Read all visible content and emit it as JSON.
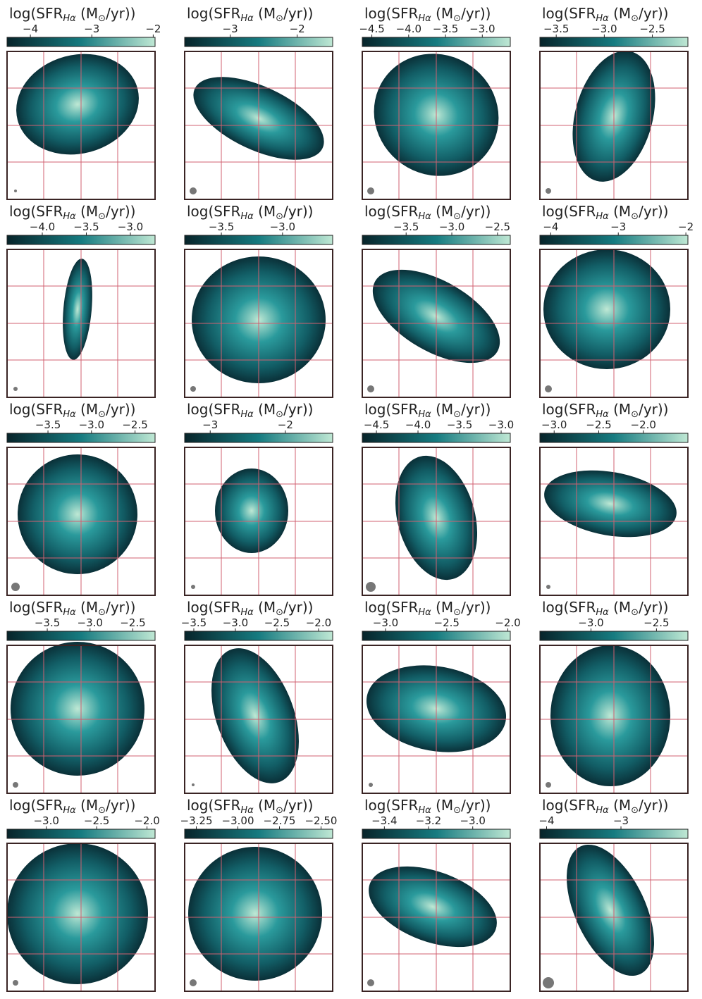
{
  "colorbar_label": [
    "log(SFR",
    "Hα",
    " (M",
    "⊙",
    "/yr))"
  ],
  "panels": [
    {
      "clim": [
        -4.38,
        -1.97
      ],
      "ticks": [
        {
          "value": -4,
          "label": "−4"
        },
        {
          "value": -3,
          "label": "−3"
        },
        {
          "value": -2,
          "label": "−2"
        }
      ]
    },
    {
      "clim": [
        -3.68,
        -1.47
      ],
      "ticks": [
        {
          "value": -3,
          "label": "−3"
        },
        {
          "value": -2,
          "label": "−2"
        }
      ]
    },
    {
      "clim": [
        -4.63,
        -2.62
      ],
      "ticks": [
        {
          "value": -4.5,
          "label": "−4.5"
        },
        {
          "value": -4.0,
          "label": "−4.0"
        },
        {
          "value": -3.5,
          "label": "−3.5"
        },
        {
          "value": -3.0,
          "label": "−3.0"
        }
      ]
    },
    {
      "clim": [
        -3.67,
        -2.13
      ],
      "ticks": [
        {
          "value": -3.5,
          "label": "−3.5"
        },
        {
          "value": -3.0,
          "label": "−3.0"
        },
        {
          "value": -2.5,
          "label": "−2.5"
        }
      ]
    },
    {
      "clim": [
        -4.4,
        -2.72
      ],
      "ticks": [
        {
          "value": -4.0,
          "label": "−4.0"
        },
        {
          "value": -3.5,
          "label": "−3.5"
        },
        {
          "value": -3.0,
          "label": "−3.0"
        }
      ]
    },
    {
      "clim": [
        -3.8,
        -2.59
      ],
      "ticks": [
        {
          "value": -3.5,
          "label": "−3.5"
        },
        {
          "value": -3.0,
          "label": "−3.0"
        }
      ]
    },
    {
      "clim": [
        -3.98,
        -2.36
      ],
      "ticks": [
        {
          "value": -3.5,
          "label": "−3.5"
        },
        {
          "value": -3.0,
          "label": "−3.0"
        },
        {
          "value": -2.5,
          "label": "−2.5"
        }
      ]
    },
    {
      "clim": [
        -4.16,
        -1.97
      ],
      "ticks": [
        {
          "value": -4,
          "label": "−4"
        },
        {
          "value": -3,
          "label": "−3"
        },
        {
          "value": -2,
          "label": "−2"
        }
      ]
    },
    {
      "clim": [
        -3.97,
        -2.27
      ],
      "ticks": [
        {
          "value": -3.5,
          "label": "−3.5"
        },
        {
          "value": -3.0,
          "label": "−3.0"
        },
        {
          "value": -2.5,
          "label": "−2.5"
        }
      ]
    },
    {
      "clim": [
        -3.34,
        -1.37
      ],
      "ticks": [
        {
          "value": -3,
          "label": "−3"
        },
        {
          "value": -2,
          "label": "−2"
        }
      ]
    },
    {
      "clim": [
        -4.67,
        -2.89
      ],
      "ticks": [
        {
          "value": -4.5,
          "label": "−4.5"
        },
        {
          "value": -4.0,
          "label": "−4.0"
        },
        {
          "value": -3.5,
          "label": "−3.5"
        },
        {
          "value": -3.0,
          "label": "−3.0"
        }
      ]
    },
    {
      "clim": [
        -3.16,
        -1.5
      ],
      "ticks": [
        {
          "value": -3.0,
          "label": "−3.0"
        },
        {
          "value": -2.5,
          "label": "−2.5"
        },
        {
          "value": -2.0,
          "label": "−2.0"
        }
      ]
    },
    {
      "clim": [
        -3.97,
        -2.24
      ],
      "ticks": [
        {
          "value": -3.5,
          "label": "−3.5"
        },
        {
          "value": -3.0,
          "label": "−3.0"
        },
        {
          "value": -2.5,
          "label": "−2.5"
        }
      ]
    },
    {
      "clim": [
        -3.61,
        -1.83
      ],
      "ticks": [
        {
          "value": -3.5,
          "label": "−3.5"
        },
        {
          "value": -3.0,
          "label": "−3.0"
        },
        {
          "value": -2.5,
          "label": "−2.5"
        },
        {
          "value": -2.0,
          "label": "−2.0"
        }
      ]
    },
    {
      "clim": [
        -3.19,
        -1.98
      ],
      "ticks": [
        {
          "value": -3.0,
          "label": "−3.0"
        },
        {
          "value": -2.5,
          "label": "−2.5"
        },
        {
          "value": -2.0,
          "label": "−2.0"
        }
      ]
    },
    {
      "clim": [
        -3.39,
        -2.26
      ],
      "ticks": [
        {
          "value": -3.0,
          "label": "−3.0"
        },
        {
          "value": -2.5,
          "label": "−2.5"
        }
      ]
    },
    {
      "clim": [
        -3.39,
        -1.92
      ],
      "ticks": [
        {
          "value": -3.0,
          "label": "−3.0"
        },
        {
          "value": -2.5,
          "label": "−2.5"
        },
        {
          "value": -2.0,
          "label": "−2.0"
        }
      ]
    },
    {
      "clim": [
        -3.32,
        -2.43
      ],
      "ticks": [
        {
          "value": -3.25,
          "label": "−3.25"
        },
        {
          "value": -3.0,
          "label": "−3.00"
        },
        {
          "value": -2.75,
          "label": "−2.75"
        },
        {
          "value": -2.5,
          "label": "−2.50"
        }
      ]
    },
    {
      "clim": [
        -3.5,
        -2.83
      ],
      "ticks": [
        {
          "value": -3.4,
          "label": "−3.4"
        },
        {
          "value": -3.2,
          "label": "−3.2"
        },
        {
          "value": -3.0,
          "label": "−3.0"
        }
      ]
    },
    {
      "clim": [
        -4.09,
        -2.1
      ],
      "ticks": [
        {
          "value": -4,
          "label": "−4"
        },
        {
          "value": -3,
          "label": "−3"
        }
      ]
    }
  ]
}
